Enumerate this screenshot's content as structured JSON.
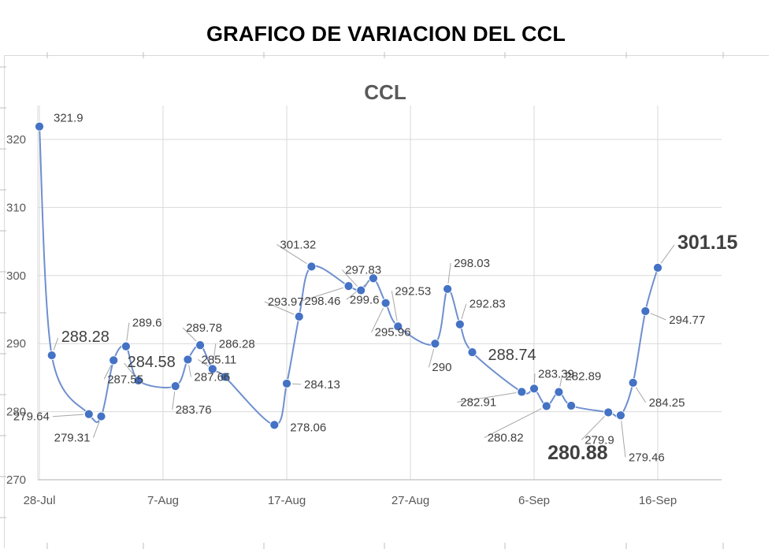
{
  "page": {
    "title": "GRAFICO DE VARIACION DEL CCL"
  },
  "chart_data": {
    "type": "line",
    "title": "CCL",
    "xlabel": "",
    "ylabel": "",
    "ylim": [
      270,
      320
    ],
    "y_ticks": [
      "270",
      "280",
      "290",
      "300",
      "310",
      "320"
    ],
    "x_ticks": [
      {
        "label": "28-Jul",
        "day": 0
      },
      {
        "label": "7-Aug",
        "day": 10
      },
      {
        "label": "17-Aug",
        "day": 20
      },
      {
        "label": "27-Aug",
        "day": 30
      },
      {
        "label": "6-Sep",
        "day": 40
      },
      {
        "label": "16-Sep",
        "day": 50
      }
    ],
    "grid": true,
    "line_color": "#6f8fcf",
    "marker_color": "#4472c4",
    "series": [
      {
        "points": [
          {
            "date": "28-Jul",
            "value": 321.9,
            "label": "321.9"
          },
          {
            "date": "29-Jul",
            "value": 288.28,
            "label": "288.28"
          },
          {
            "date": "1-Aug",
            "value": 279.64,
            "label": "279.64"
          },
          {
            "date": "2-Aug",
            "value": 279.31,
            "label": "279.31"
          },
          {
            "date": "3-Aug",
            "value": 287.55,
            "label": "287.55"
          },
          {
            "date": "4-Aug",
            "value": 289.6,
            "label": "289.6"
          },
          {
            "date": "5-Aug",
            "value": 284.58,
            "label": "284.58"
          },
          {
            "date": "8-Aug",
            "value": 283.76,
            "label": "283.76"
          },
          {
            "date": "9-Aug",
            "value": 287.66,
            "label": "287.66"
          },
          {
            "date": "10-Aug",
            "value": 289.78,
            "label": "289.78"
          },
          {
            "date": "11-Aug",
            "value": 286.28,
            "label": "286.28"
          },
          {
            "date": "12-Aug",
            "value": 285.11,
            "label": "285.11"
          },
          {
            "date": "16-Aug",
            "value": 278.06,
            "label": "278.06"
          },
          {
            "date": "17-Aug",
            "value": 284.13,
            "label": "284.13"
          },
          {
            "date": "18-Aug",
            "value": 293.97,
            "label": "293.97"
          },
          {
            "date": "19-Aug",
            "value": 301.32,
            "label": "301.32"
          },
          {
            "date": "22-Aug",
            "value": 298.46,
            "label": "298.46"
          },
          {
            "date": "23-Aug",
            "value": 297.83,
            "label": "297.83"
          },
          {
            "date": "24-Aug",
            "value": 299.6,
            "label": "299.6"
          },
          {
            "date": "25-Aug",
            "value": 295.96,
            "label": "295.96"
          },
          {
            "date": "26-Aug",
            "value": 292.53,
            "label": "292.53"
          },
          {
            "date": "29-Aug",
            "value": 290,
            "label": "290"
          },
          {
            "date": "30-Aug",
            "value": 298.03,
            "label": "298.03"
          },
          {
            "date": "31-Aug",
            "value": 292.83,
            "label": "292.83"
          },
          {
            "date": "1-Sep",
            "value": 288.74,
            "label": "288.74"
          },
          {
            "date": "5-Sep",
            "value": 282.91,
            "label": "282.91"
          },
          {
            "date": "6-Sep",
            "value": 283.39,
            "label": "283.39"
          },
          {
            "date": "7-Sep",
            "value": 280.82,
            "label": "280.82"
          },
          {
            "date": "8-Sep",
            "value": 282.89,
            "label": "282.89"
          },
          {
            "date": "9-Sep",
            "value": 280.88,
            "label": "280.88"
          },
          {
            "date": "12-Sep",
            "value": 279.9,
            "label": "279.9"
          },
          {
            "date": "13-Sep",
            "value": 279.46,
            "label": "279.46"
          },
          {
            "date": "14-Sep",
            "value": 284.25,
            "label": "284.25"
          },
          {
            "date": "15-Sep",
            "value": 294.77,
            "label": "294.77"
          },
          {
            "date": "16-Sep",
            "value": 301.15,
            "label": "301.15"
          }
        ]
      }
    ]
  }
}
